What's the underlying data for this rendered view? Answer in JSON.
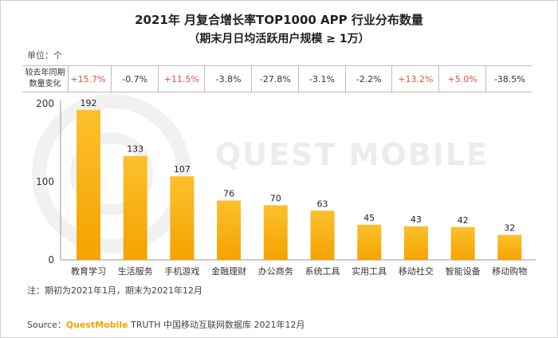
{
  "chart_data": {
    "type": "bar",
    "title": "2021年 月复合增长率TOP1000 APP 行业分布数量",
    "subtitle": "（期末月日均活跃用户规模 ≥ 1万）",
    "unit_label": "单位：个",
    "categories": [
      "教育学习",
      "生活服务",
      "手机游戏",
      "金融理财",
      "办公商务",
      "系统工具",
      "实用工具",
      "移动社交",
      "智能设备",
      "移动购物"
    ],
    "values": [
      192,
      133,
      107,
      76,
      70,
      63,
      45,
      43,
      42,
      32
    ],
    "yticks": [
      0,
      100,
      200
    ],
    "ylim": [
      0,
      200
    ],
    "bar_color": "#fbc02d",
    "bar_color_dark": "#f5a300",
    "yoy_row_label": [
      "较去年同期",
      "数量变化"
    ],
    "yoy_changes": [
      "+15.7%",
      "-0.7%",
      "+11.5%",
      "-3.8%",
      "-27.8%",
      "-3.1%",
      "-2.2%",
      "+13.2%",
      "+5.0%",
      "-38.5%"
    ],
    "positive_color": "#e2533b"
  },
  "note": "注：期初为2021年1月，期末为2021年12月",
  "source": {
    "prefix": "Source：",
    "brand": "QuestMobile",
    "rest": " TRUTH 中国移动互联网数据库 2021年12月"
  },
  "watermark": "QUEST MOBILE"
}
